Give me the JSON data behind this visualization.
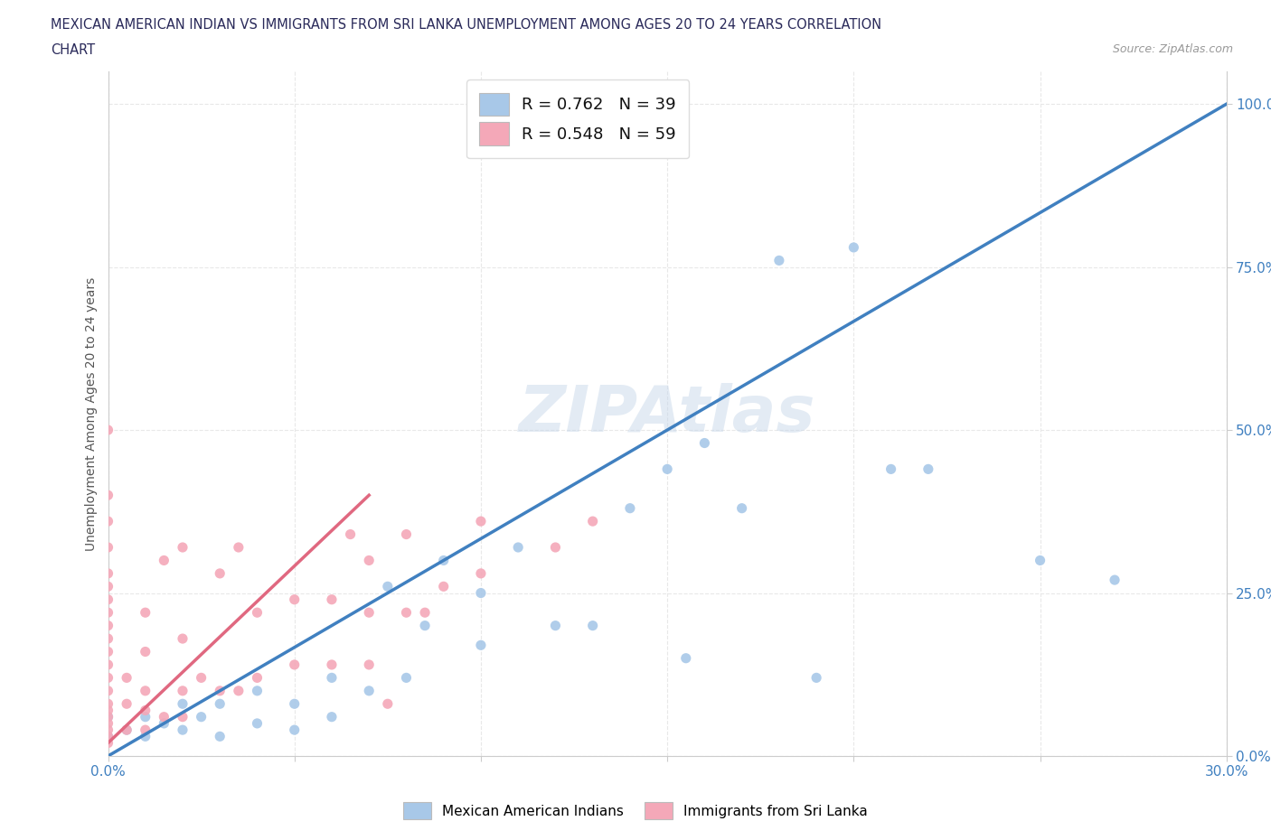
{
  "title_line1": "MEXICAN AMERICAN INDIAN VS IMMIGRANTS FROM SRI LANKA UNEMPLOYMENT AMONG AGES 20 TO 24 YEARS CORRELATION",
  "title_line2": "CHART",
  "source": "Source: ZipAtlas.com",
  "ylabel": "Unemployment Among Ages 20 to 24 years",
  "xmin": 0.0,
  "xmax": 0.3,
  "ymin": 0.0,
  "ymax": 1.05,
  "blue_color": "#a8c8e8",
  "pink_color": "#f4a8b8",
  "blue_line_color": "#4080c0",
  "pink_line_color": "#e06880",
  "diagonal_color": "#e8b8c0",
  "R_blue": 0.762,
  "N_blue": 39,
  "R_pink": 0.548,
  "N_pink": 59,
  "blue_scatter_x": [
    0.0,
    0.0,
    0.005,
    0.01,
    0.01,
    0.015,
    0.02,
    0.02,
    0.025,
    0.03,
    0.03,
    0.04,
    0.04,
    0.05,
    0.05,
    0.06,
    0.06,
    0.07,
    0.075,
    0.08,
    0.085,
    0.09,
    0.1,
    0.1,
    0.11,
    0.12,
    0.13,
    0.14,
    0.15,
    0.155,
    0.16,
    0.17,
    0.18,
    0.19,
    0.2,
    0.21,
    0.22,
    0.25,
    0.27
  ],
  "blue_scatter_y": [
    0.03,
    0.06,
    0.04,
    0.03,
    0.06,
    0.05,
    0.04,
    0.08,
    0.06,
    0.03,
    0.08,
    0.05,
    0.1,
    0.04,
    0.08,
    0.06,
    0.12,
    0.1,
    0.26,
    0.12,
    0.2,
    0.3,
    0.17,
    0.25,
    0.32,
    0.2,
    0.2,
    0.38,
    0.44,
    0.15,
    0.48,
    0.38,
    0.76,
    0.12,
    0.78,
    0.44,
    0.44,
    0.3,
    0.27
  ],
  "pink_scatter_x": [
    0.0,
    0.0,
    0.0,
    0.0,
    0.0,
    0.0,
    0.0,
    0.0,
    0.0,
    0.0,
    0.0,
    0.0,
    0.0,
    0.0,
    0.0,
    0.0,
    0.0,
    0.0,
    0.0,
    0.0,
    0.0,
    0.005,
    0.005,
    0.005,
    0.01,
    0.01,
    0.01,
    0.01,
    0.01,
    0.015,
    0.015,
    0.02,
    0.02,
    0.02,
    0.02,
    0.025,
    0.03,
    0.03,
    0.035,
    0.035,
    0.04,
    0.04,
    0.05,
    0.05,
    0.06,
    0.06,
    0.065,
    0.07,
    0.07,
    0.07,
    0.075,
    0.08,
    0.08,
    0.085,
    0.09,
    0.1,
    0.1,
    0.12,
    0.13
  ],
  "pink_scatter_y": [
    0.02,
    0.03,
    0.04,
    0.05,
    0.06,
    0.07,
    0.08,
    0.1,
    0.12,
    0.14,
    0.16,
    0.18,
    0.2,
    0.22,
    0.24,
    0.26,
    0.28,
    0.32,
    0.36,
    0.4,
    0.5,
    0.04,
    0.08,
    0.12,
    0.04,
    0.07,
    0.1,
    0.16,
    0.22,
    0.06,
    0.3,
    0.06,
    0.1,
    0.18,
    0.32,
    0.12,
    0.1,
    0.28,
    0.1,
    0.32,
    0.12,
    0.22,
    0.14,
    0.24,
    0.14,
    0.24,
    0.34,
    0.14,
    0.22,
    0.3,
    0.08,
    0.22,
    0.34,
    0.22,
    0.26,
    0.28,
    0.36,
    0.32,
    0.36
  ],
  "legend_label_blue": "Mexican American Indians",
  "legend_label_pink": "Immigrants from Sri Lanka",
  "background_color": "#ffffff",
  "grid_color": "#e8e8e8",
  "blue_line_x0": 0.0,
  "blue_line_y0": 0.0,
  "blue_line_x1": 0.3,
  "blue_line_y1": 1.0,
  "pink_line_x0": 0.0,
  "pink_line_y0": 0.02,
  "pink_line_x1": 0.07,
  "pink_line_y1": 0.4
}
